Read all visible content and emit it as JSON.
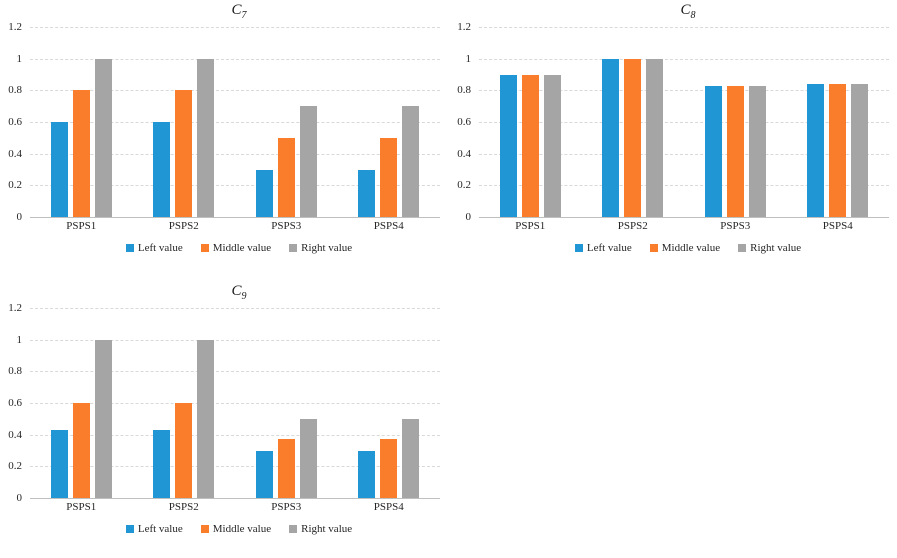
{
  "page": {
    "background": "#FFFFFF"
  },
  "colors": {
    "gridline": "#D9D9D9",
    "axis_line": "#BFBFBF",
    "tick_text": "#262626",
    "title_text": "#1A1A1A",
    "series_blue": "#2196D5",
    "series_orange": "#F97D2B",
    "series_gray": "#A5A5A5"
  },
  "chart_data": [
    {
      "type": "bar",
      "title": {
        "main": "C",
        "sub": "7"
      },
      "categories": [
        "PSPS1",
        "PSPS2",
        "PSPS3",
        "PSPS4"
      ],
      "series": [
        {
          "name": "Left value",
          "color": "#2196D5",
          "values": [
            0.6,
            0.6,
            0.3,
            0.3
          ]
        },
        {
          "name": "Middle value",
          "color": "#F97D2B",
          "values": [
            0.8,
            0.8,
            0.5,
            0.5
          ]
        },
        {
          "name": "Right value",
          "color": "#A5A5A5",
          "values": [
            1.0,
            1.0,
            0.7,
            0.7
          ]
        }
      ],
      "xlabel": "",
      "ylabel": "",
      "ylim": [
        0,
        1.2
      ],
      "ytick_values": [
        0,
        0.2,
        0.4,
        0.6,
        0.8,
        1,
        1.2
      ],
      "ytick_labels": [
        "0",
        "0.2",
        "0.4",
        "0.6",
        "0.8",
        "1",
        "1.2"
      ],
      "grid": true,
      "legend_position": "bottom"
    },
    {
      "type": "bar",
      "title": {
        "main": "C",
        "sub": "8"
      },
      "categories": [
        "PSPS1",
        "PSPS2",
        "PSPS3",
        "PSPS4"
      ],
      "series": [
        {
          "name": "Left value",
          "color": "#2196D5",
          "values": [
            0.9,
            1.0,
            0.83,
            0.84
          ]
        },
        {
          "name": "Middle value",
          "color": "#F97D2B",
          "values": [
            0.9,
            1.0,
            0.83,
            0.84
          ]
        },
        {
          "name": "Right value",
          "color": "#A5A5A5",
          "values": [
            0.9,
            1.0,
            0.83,
            0.84
          ]
        }
      ],
      "xlabel": "",
      "ylabel": "",
      "ylim": [
        0,
        1.2
      ],
      "ytick_values": [
        0,
        0.2,
        0.4,
        0.6,
        0.8,
        1,
        1.2
      ],
      "ytick_labels": [
        "0",
        "0.2",
        "0.4",
        "0.6",
        "0.8",
        "1",
        "1.2"
      ],
      "grid": true,
      "legend_position": "bottom"
    },
    {
      "type": "bar",
      "title": {
        "main": "C",
        "sub": "9"
      },
      "categories": [
        "PSPS1",
        "PSPS2",
        "PSPS3",
        "PSPS4"
      ],
      "series": [
        {
          "name": "Left value",
          "color": "#2196D5",
          "values": [
            0.43,
            0.43,
            0.3,
            0.3
          ]
        },
        {
          "name": "Middle value",
          "color": "#F97D2B",
          "values": [
            0.6,
            0.6,
            0.37,
            0.37
          ]
        },
        {
          "name": "Right value",
          "color": "#A5A5A5",
          "values": [
            1.0,
            1.0,
            0.5,
            0.5
          ]
        }
      ],
      "xlabel": "",
      "ylabel": "",
      "ylim": [
        0,
        1.2
      ],
      "ytick_values": [
        0,
        0.2,
        0.4,
        0.6,
        0.8,
        1,
        1.2
      ],
      "ytick_labels": [
        "0",
        "0.2",
        "0.4",
        "0.6",
        "0.8",
        "1",
        "1.2"
      ],
      "grid": true,
      "legend_position": "bottom"
    }
  ]
}
